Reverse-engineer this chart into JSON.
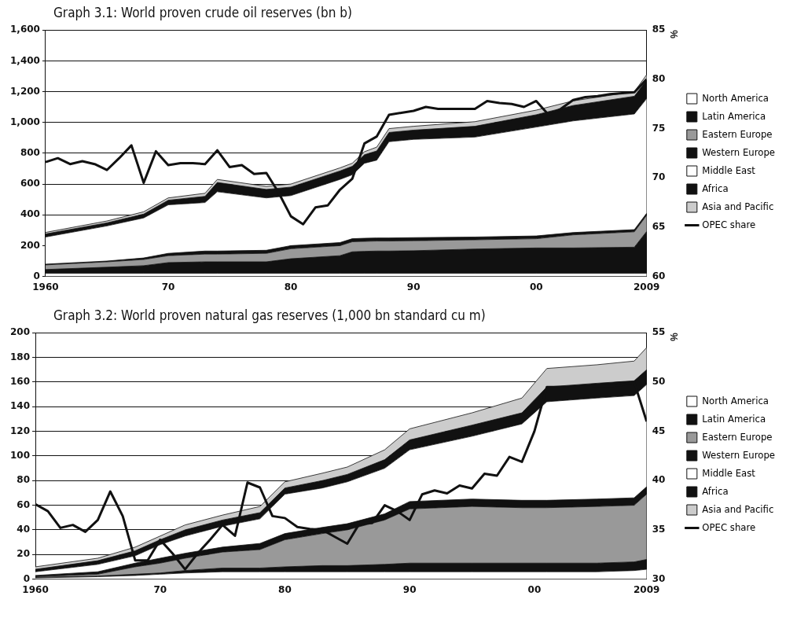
{
  "chart_data": [
    {
      "type": "area",
      "title": "Graph 3.1: World proven crude oil reserves (bn b)",
      "y2label": "%",
      "stacked": true,
      "grid": "y",
      "legend": "right",
      "x": [
        1960,
        1965,
        1968,
        1970,
        1973,
        1974,
        1978,
        1980,
        1984,
        1985,
        1986,
        1987,
        1988,
        1990,
        1995,
        2000,
        2003,
        2008,
        2009
      ],
      "xlim": [
        1960,
        2009
      ],
      "xticks": [
        {
          "value": 1960,
          "label": "1960"
        },
        {
          "value": 1970,
          "label": "70"
        },
        {
          "value": 1980,
          "label": "80"
        },
        {
          "value": 1990,
          "label": "90"
        },
        {
          "value": 2000,
          "label": "00"
        },
        {
          "value": 2009,
          "label": "2009"
        }
      ],
      "ylim": [
        0,
        1600
      ],
      "yticks": [
        {
          "value": 0,
          "label": "0"
        },
        {
          "value": 200,
          "label": "200"
        },
        {
          "value": 400,
          "label": "400"
        },
        {
          "value": 600,
          "label": "600"
        },
        {
          "value": 800,
          "label": "800"
        },
        {
          "value": 1000,
          "label": "1,000"
        },
        {
          "value": 1200,
          "label": "1,200"
        },
        {
          "value": 1400,
          "label": "1,400"
        },
        {
          "value": 1600,
          "label": "1,600"
        }
      ],
      "y2lim": [
        60,
        85
      ],
      "y2ticks": [
        60,
        65,
        70,
        75,
        80,
        85
      ],
      "series": [
        {
          "name": "North America",
          "color": "#ffffff",
          "values": [
            20,
            20,
            20,
            20,
            20,
            20,
            20,
            20,
            20,
            20,
            20,
            20,
            20,
            20,
            20,
            20,
            20,
            20,
            20
          ]
        },
        {
          "name": "Latin America",
          "color": "#111111",
          "values": [
            25,
            40,
            50,
            70,
            75,
            75,
            75,
            95,
            115,
            140,
            143,
            145,
            145,
            147,
            158,
            165,
            165,
            170,
            272
          ]
        },
        {
          "name": "Eastern Europe",
          "color": "#999999",
          "values": [
            30,
            35,
            40,
            45,
            50,
            50,
            55,
            65,
            65,
            65,
            65,
            65,
            65,
            65,
            60,
            60,
            85,
            100,
            105
          ]
        },
        {
          "name": "Western Europe",
          "color": "#111111",
          "values": [
            5,
            5,
            10,
            15,
            20,
            20,
            20,
            20,
            20,
            20,
            20,
            20,
            20,
            20,
            18,
            18,
            15,
            14,
            13
          ]
        },
        {
          "name": "Middle East",
          "color": "#ffffff",
          "values": [
            176,
            228,
            260,
            315,
            315,
            385,
            340,
            325,
            410,
            415,
            487,
            505,
            625,
            638,
            649,
            707,
            725,
            751,
            745
          ]
        },
        {
          "name": "Africa",
          "color": "#111111",
          "values": [
            20,
            20,
            25,
            30,
            40,
            60,
            55,
            55,
            55,
            55,
            55,
            60,
            60,
            60,
            70,
            80,
            100,
            115,
            120
          ]
        },
        {
          "name": "Asia and Pacific",
          "color": "#cccccc",
          "values": [
            10,
            12,
            15,
            15,
            20,
            20,
            20,
            20,
            20,
            20,
            20,
            25,
            25,
            25,
            30,
            30,
            30,
            30,
            35
          ]
        },
        {
          "name": "OPEC share",
          "type": "line",
          "axis": "y2",
          "color": "#111111",
          "x": [
            1960,
            1961,
            1962,
            1963,
            1964,
            1965,
            1966,
            1967,
            1968,
            1969,
            1970,
            1971,
            1972,
            1973,
            1974,
            1975,
            1976,
            1977,
            1978,
            1979,
            1980,
            1981,
            1982,
            1983,
            1984,
            1985,
            1986,
            1987,
            1988,
            1989,
            1990,
            1991,
            1992,
            1993,
            1994,
            1995,
            1996,
            1997,
            1998,
            1999,
            2000,
            2001,
            2002,
            2003,
            2004,
            2005,
            2006,
            2007,
            2008,
            2009
          ],
          "values": [
            71.6,
            72.0,
            71.4,
            71.7,
            71.4,
            70.8,
            72.0,
            73.3,
            69.5,
            72.7,
            71.3,
            71.5,
            71.5,
            71.4,
            72.8,
            71.1,
            71.3,
            70.4,
            70.5,
            68.5,
            66.1,
            65.3,
            67.0,
            67.2,
            68.8,
            69.9,
            73.5,
            74.2,
            76.4,
            76.6,
            76.8,
            77.2,
            77.0,
            77.0,
            77.0,
            77.0,
            77.8,
            77.6,
            77.5,
            77.2,
            77.8,
            76.4,
            77.0,
            77.9,
            78.2,
            78.3,
            78.5,
            78.6,
            78.7,
            80.0
          ]
        }
      ]
    },
    {
      "type": "area",
      "title": "Graph 3.2: World proven natural gas reserves (1,000 bn standard cu m)",
      "y2label": "%",
      "stacked": true,
      "grid": "y",
      "legend": "right",
      "x": [
        1960,
        1965,
        1968,
        1970,
        1972,
        1975,
        1978,
        1980,
        1983,
        1985,
        1988,
        1990,
        1995,
        1999,
        2001,
        2005,
        2008,
        2009
      ],
      "xlim": [
        1960,
        2009
      ],
      "xticks": [
        {
          "value": 1960,
          "label": "1960"
        },
        {
          "value": 1970,
          "label": "70"
        },
        {
          "value": 1980,
          "label": "80"
        },
        {
          "value": 1990,
          "label": "90"
        },
        {
          "value": 2000,
          "label": "00"
        },
        {
          "value": 2009,
          "label": "2009"
        }
      ],
      "ylim": [
        0,
        200
      ],
      "yticks": [
        0,
        20,
        40,
        60,
        80,
        100,
        120,
        140,
        160,
        180,
        200
      ],
      "y2lim": [
        30,
        55
      ],
      "y2ticks": [
        30,
        35,
        40,
        45,
        50,
        55
      ],
      "series": [
        {
          "name": "North America",
          "color": "#ffffff",
          "values": [
            1,
            2,
            3,
            4,
            5,
            6,
            6,
            6,
            6,
            6,
            6,
            6,
            6,
            6,
            6,
            6,
            7,
            8
          ]
        },
        {
          "name": "Latin America",
          "color": "#111111",
          "values": [
            0.5,
            0.5,
            1,
            1,
            2,
            3,
            3,
            4,
            5,
            5,
            6,
            7,
            7,
            7,
            7,
            7,
            7,
            8
          ]
        },
        {
          "name": "Eastern Europe",
          "color": "#999999",
          "values": [
            0.5,
            1.5,
            6,
            8,
            10,
            13,
            15,
            22,
            26,
            29,
            36,
            44,
            46,
            45,
            45,
            46,
            46,
            53
          ]
        },
        {
          "name": "Western Europe",
          "color": "#111111",
          "values": [
            1,
            2,
            3,
            4,
            4,
            4,
            5,
            5,
            5,
            5,
            5,
            6,
            6,
            6,
            6,
            6,
            6,
            6
          ]
        },
        {
          "name": "Middle East",
          "color": "#ffffff",
          "values": [
            3,
            6,
            6,
            11,
            14,
            17,
            20,
            32,
            32,
            34,
            37,
            42,
            51,
            62,
            80,
            82,
            83,
            83
          ]
        },
        {
          "name": "Africa",
          "color": "#111111",
          "values": [
            2,
            3,
            4,
            4,
            5,
            5,
            5,
            5,
            6,
            6,
            7,
            8,
            9,
            9,
            12,
            12,
            12,
            12
          ]
        },
        {
          "name": "Asia and Pacific",
          "color": "#cccccc",
          "values": [
            2,
            2,
            3,
            3,
            4,
            4,
            5,
            5,
            6,
            6,
            8,
            9,
            10,
            12,
            15,
            15,
            16,
            18
          ]
        },
        {
          "name": "OPEC share",
          "type": "line",
          "axis": "y2",
          "color": "#111111",
          "x": [
            1960,
            1961,
            1962,
            1963,
            1964,
            1965,
            1966,
            1967,
            1968,
            1969,
            1970,
            1971,
            1972,
            1973,
            1974,
            1975,
            1976,
            1977,
            1978,
            1979,
            1980,
            1981,
            1982,
            1983,
            1984,
            1985,
            1986,
            1987,
            1988,
            1989,
            1990,
            1991,
            1992,
            1993,
            1994,
            1995,
            1996,
            1997,
            1998,
            1999,
            2000,
            2001,
            2002,
            2003,
            2004,
            2005,
            2006,
            2007,
            2008,
            2009
          ],
          "values": [
            37.6,
            36.9,
            35.2,
            35.5,
            34.8,
            36.0,
            38.9,
            36.4,
            31.9,
            31.9,
            34.0,
            32.6,
            31.0,
            32.6,
            34.0,
            35.5,
            34.4,
            39.8,
            39.3,
            36.4,
            36.2,
            35.3,
            35.1,
            35.0,
            34.3,
            33.6,
            35.7,
            35.7,
            37.5,
            36.9,
            36.0,
            38.6,
            39.0,
            38.7,
            39.5,
            39.2,
            40.7,
            40.5,
            42.4,
            41.9,
            45.0,
            49.5,
            49.5,
            49.5,
            49.5,
            49.6,
            49.6,
            49.7,
            50.0,
            46.0
          ]
        }
      ]
    }
  ]
}
